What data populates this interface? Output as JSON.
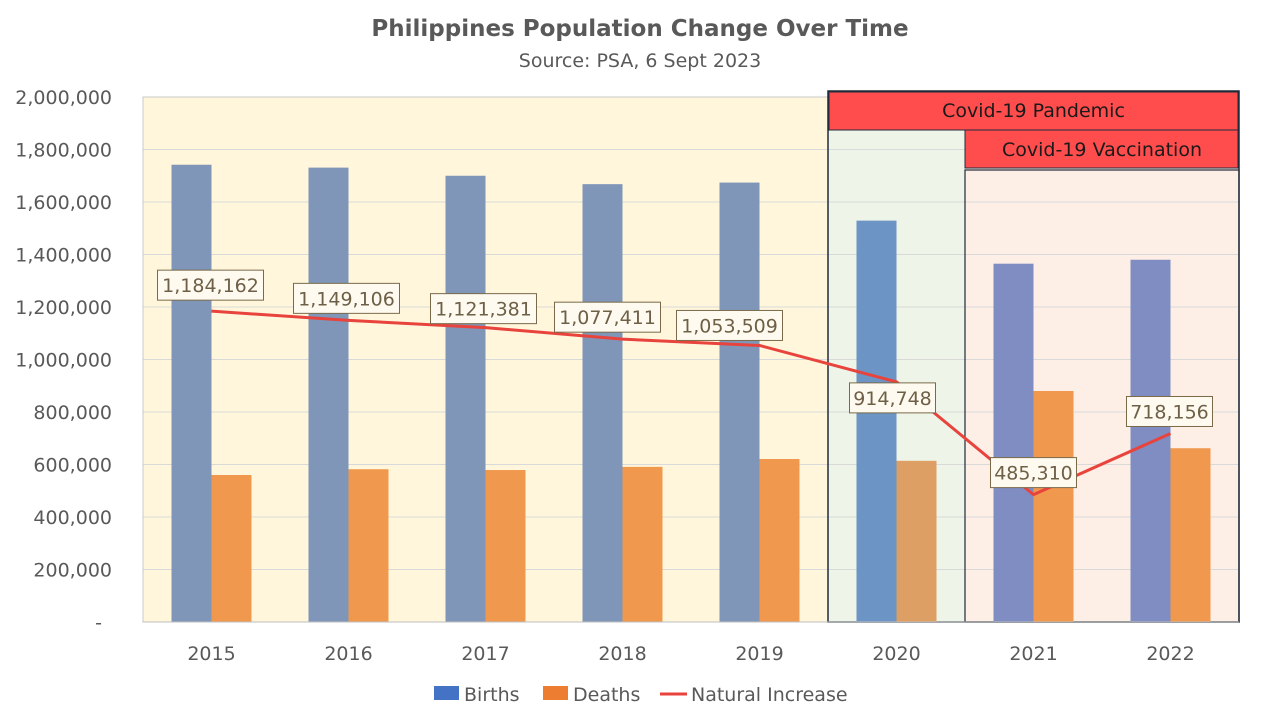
{
  "chart_data": {
    "type": "bar",
    "title": "Philippines Population Change Over Time",
    "subtitle": "Source: PSA, 6 Sept 2023",
    "categories": [
      "2015",
      "2016",
      "2017",
      "2018",
      "2019",
      "2020",
      "2021",
      "2022"
    ],
    "series": [
      {
        "name": "Births",
        "type": "bar",
        "values": [
          1742000,
          1731000,
          1700000,
          1668000,
          1674000,
          1529000,
          1365000,
          1380000
        ]
      },
      {
        "name": "Deaths",
        "type": "bar",
        "values": [
          560000,
          582000,
          579000,
          591000,
          621000,
          614000,
          880000,
          662000
        ]
      },
      {
        "name": "Natural Increase",
        "type": "line",
        "values": [
          1184162,
          1149106,
          1121381,
          1077411,
          1053509,
          914748,
          485310,
          718156
        ]
      }
    ],
    "data_labels": [
      "1,184,162",
      "1,149,106",
      "1,121,381",
      "1,077,411",
      "1,053,509",
      "914,748",
      "485,310",
      "718,156"
    ],
    "ylim": [
      0,
      2000000
    ],
    "yticks": [
      {
        "value": 0,
        "label": "-"
      },
      {
        "value": 200000,
        "label": "200,000"
      },
      {
        "value": 400000,
        "label": "400,000"
      },
      {
        "value": 600000,
        "label": "600,000"
      },
      {
        "value": 800000,
        "label": "800,000"
      },
      {
        "value": 1000000,
        "label": "1,000,000"
      },
      {
        "value": 1200000,
        "label": "1,200,000"
      },
      {
        "value": 1400000,
        "label": "1,400,000"
      },
      {
        "value": 1600000,
        "label": "1,600,000"
      },
      {
        "value": 1800000,
        "label": "1,800,000"
      },
      {
        "value": 2000000,
        "label": "2,000,000"
      }
    ],
    "grid": true,
    "legend_position": "bottom",
    "annotations": {
      "pandemic_label": "Covid-19 Pandemic",
      "vaccination_label": "Covid-19 Vaccination"
    },
    "colors": {
      "births": "#7f96b8",
      "births_2020": "#6c94c4",
      "births_2021_2022": "#7f8dc2",
      "deaths": "#f0994e",
      "deaths_2020": "#dd9f63",
      "line": "#e8433c",
      "pre_covid_bg": "#fff6dc",
      "pandemic_bg": "#eef4e8",
      "vaccination_bg": "#fdeee6",
      "banner": "#ff4d4d",
      "legend_births": "#4472c4",
      "legend_deaths": "#ed7d31"
    }
  }
}
